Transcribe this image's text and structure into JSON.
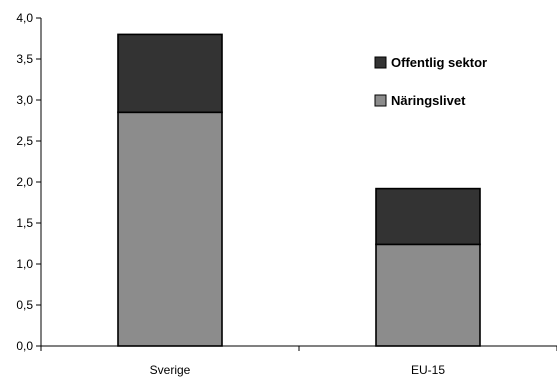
{
  "chart_data": {
    "type": "bar",
    "stacked": true,
    "categories": [
      "Sverige",
      "EU-15"
    ],
    "series": [
      {
        "name": "Näringslivet",
        "values": [
          2.85,
          1.24
        ],
        "color": "#8c8c8c"
      },
      {
        "name": "Offentlig sektor",
        "values": [
          0.95,
          0.68
        ],
        "color": "#333333"
      }
    ],
    "legend_order": [
      "Offentlig sektor",
      "Näringslivet"
    ],
    "ylim": [
      0,
      4.0
    ],
    "yticks": [
      "0,0",
      "0,5",
      "1,0",
      "1,5",
      "2,0",
      "2,5",
      "3,0",
      "3,5",
      "4,0"
    ],
    "ytick_values": [
      0,
      0.5,
      1.0,
      1.5,
      2.0,
      2.5,
      3.0,
      3.5,
      4.0
    ],
    "grid": false,
    "legend_position": "top-right",
    "title": "",
    "xlabel": "",
    "ylabel": ""
  }
}
